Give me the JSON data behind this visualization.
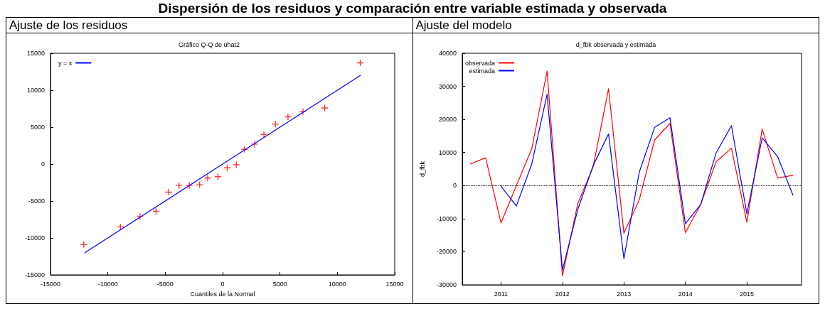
{
  "chart_data": [
    {
      "type": "scatter",
      "title": "Ajuste de los residuos",
      "subtitle": "Gráfico Q-Q de uhat2",
      "xlabel": "Cuantiles de la Normal",
      "annotations": [
        "Dispersión de los residuos y comparación entre variable estimada y observada"
      ],
      "xlim": [
        -15000,
        15000
      ],
      "ylim": [
        -15000,
        15000
      ],
      "xticks": [
        -15000,
        -10000,
        -5000,
        0,
        5000,
        10000,
        15000
      ],
      "yticks": [
        -15000,
        -10000,
        -5000,
        0,
        5000,
        10000,
        15000
      ],
      "grid": false,
      "legend": "top left",
      "marker": "cross",
      "series": [
        {
          "color": "#ff0000",
          "x": [
            -12100,
            -8900,
            -7200,
            -5800,
            -4700,
            -3800,
            -2900,
            -2000,
            -1300,
            -400,
            400,
            1200,
            1900,
            2800,
            3600,
            4600,
            5700,
            7000,
            8900,
            12000
          ],
          "values": [
            -10900,
            -8500,
            -7100,
            -6400,
            -3800,
            -2900,
            -2900,
            -2800,
            -1900,
            -1700,
            -500,
            -100,
            2000,
            2700,
            4000,
            5400,
            6400,
            7100,
            7600,
            13700
          ]
        },
        {
          "type": "line",
          "name": "y = x",
          "color": "#0000ff",
          "marker": "none",
          "x": [
            -12000,
            12000
          ],
          "values": [
            -12000,
            12000
          ]
        }
      ]
    },
    {
      "type": "line",
      "title": "Ajuste del modelo",
      "subtitle": "d_fbk observada y estimada",
      "ylabel": "d_fbk",
      "xlim": [
        2010.37,
        2015.89
      ],
      "ylim": [
        -30000,
        40000
      ],
      "xticks": [
        2011,
        2012,
        2013,
        2014,
        2015
      ],
      "yticks": [
        -30000,
        -20000,
        -10000,
        0,
        10000,
        20000,
        30000,
        40000
      ],
      "grid": false,
      "legend": "top left",
      "marker": "none",
      "ref_lines": [
        {
          "axis": "y",
          "value": 0,
          "color": "#000000",
          "line_style": "dotted"
        }
      ],
      "series": [
        {
          "name": "observada",
          "color": "#ff0000",
          "x": [
            2010.5,
            2010.75,
            2011,
            2011.25,
            2011.5,
            2011.75,
            2012,
            2012.25,
            2012.5,
            2012.75,
            2013,
            2013.25,
            2013.5,
            2013.75,
            2014,
            2014.25,
            2014.5,
            2014.75,
            2015,
            2015.25,
            2015.5,
            2015.75
          ],
          "values": [
            6500,
            8400,
            -11300,
            0,
            11100,
            34600,
            -27300,
            -5400,
            5700,
            29300,
            -14400,
            -4300,
            13800,
            18800,
            -14200,
            -5700,
            7200,
            11300,
            -11100,
            17100,
            2300,
            3100
          ]
        },
        {
          "name": "estimada",
          "color": "#0000ff",
          "x": [
            2011,
            2011.25,
            2011.5,
            2011.75,
            2012,
            2012.25,
            2012.5,
            2012.75,
            2013,
            2013.25,
            2013.5,
            2013.75,
            2014,
            2014.25,
            2014.5,
            2014.75,
            2015,
            2015.25,
            2015.5,
            2015.75
          ],
          "values": [
            -200,
            -6200,
            6500,
            27600,
            -25500,
            -7200,
            6100,
            15600,
            -22100,
            4100,
            17600,
            20500,
            -11500,
            -5700,
            9900,
            18100,
            -8500,
            14400,
            8800,
            -2900
          ]
        }
      ]
    }
  ]
}
